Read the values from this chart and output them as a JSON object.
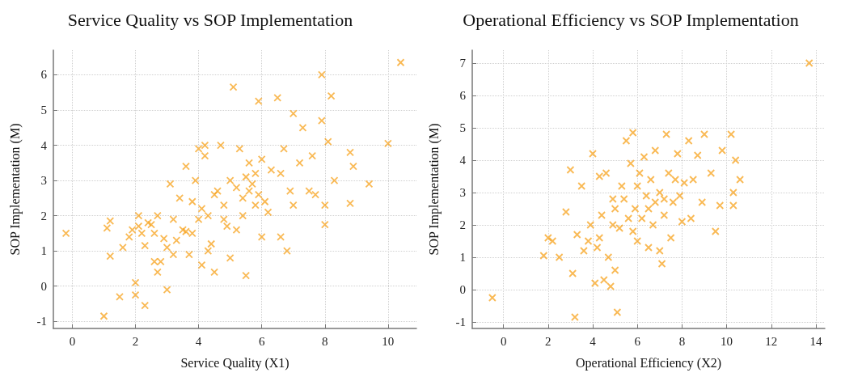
{
  "chart_data": [
    {
      "type": "scatter",
      "title": "Service Quality vs SOP Implementation",
      "xlabel": "Service Quality (X1)",
      "ylabel": "SOP Implementation (M)",
      "marker": "cross",
      "grid": true,
      "xlim": [
        -0.6,
        10.9
      ],
      "ylim": [
        -1.2,
        6.7
      ],
      "xticks": [
        0,
        2,
        4,
        6,
        8,
        10
      ],
      "yticks": [
        -1,
        0,
        1,
        2,
        3,
        4,
        5,
        6
      ],
      "series": [
        {
          "color": "#f7a21b",
          "x": [
            -0.2,
            1.0,
            1.1,
            1.2,
            1.2,
            1.5,
            1.6,
            1.8,
            1.9,
            2.0,
            2.0,
            2.1,
            2.1,
            2.2,
            2.3,
            2.3,
            2.5,
            2.6,
            2.6,
            2.7,
            2.7,
            2.8,
            2.9,
            3.0,
            3.0,
            3.1,
            3.2,
            3.3,
            3.4,
            3.5,
            3.6,
            3.6,
            3.7,
            3.8,
            3.9,
            4.0,
            4.0,
            4.1,
            4.1,
            4.2,
            4.2,
            4.3,
            4.4,
            4.5,
            4.6,
            4.7,
            4.8,
            4.9,
            5.0,
            5.0,
            5.1,
            5.2,
            5.3,
            5.4,
            5.5,
            5.5,
            5.6,
            5.7,
            5.8,
            5.9,
            6.0,
            6.0,
            6.2,
            6.3,
            6.5,
            6.6,
            6.6,
            6.7,
            6.8,
            6.9,
            7.0,
            7.0,
            7.2,
            7.3,
            7.5,
            7.6,
            7.7,
            7.9,
            7.9,
            8.0,
            8.0,
            8.1,
            8.2,
            8.3,
            8.8,
            8.8,
            8.9,
            9.4,
            10.0,
            10.4,
            5.6,
            5.8,
            5.9,
            6.1,
            5.4,
            4.5,
            3.8,
            3.2,
            2.4,
            4.8,
            5.2,
            4.3
          ],
          "values": [
            1.5,
            -0.85,
            1.65,
            1.85,
            0.85,
            -0.3,
            1.1,
            1.4,
            1.6,
            0.1,
            -0.25,
            2.0,
            1.7,
            1.5,
            -0.55,
            1.15,
            1.75,
            1.5,
            0.7,
            0.4,
            2.0,
            0.7,
            1.35,
            1.1,
            -0.1,
            2.9,
            0.9,
            1.3,
            2.5,
            1.6,
            1.55,
            3.4,
            0.9,
            1.5,
            3.0,
            3.9,
            1.9,
            2.2,
            0.6,
            4.0,
            3.7,
            2.0,
            1.2,
            0.4,
            2.7,
            4.0,
            2.3,
            1.7,
            3.0,
            0.8,
            5.65,
            2.8,
            3.9,
            2.5,
            3.1,
            0.3,
            2.7,
            2.9,
            2.3,
            5.25,
            3.6,
            1.4,
            2.1,
            3.3,
            5.35,
            3.2,
            1.4,
            3.9,
            1.0,
            2.7,
            4.9,
            2.3,
            3.5,
            4.5,
            2.7,
            3.7,
            2.6,
            6.0,
            4.7,
            2.3,
            1.75,
            4.1,
            5.4,
            3.0,
            3.8,
            2.35,
            3.4,
            2.9,
            4.05,
            6.35,
            3.5,
            3.2,
            2.6,
            2.4,
            2.0,
            2.6,
            2.4,
            1.9,
            1.8,
            1.9,
            1.6,
            1.0
          ]
        }
      ]
    },
    {
      "type": "scatter",
      "title": "Operational Efficiency vs SOP Implementation",
      "xlabel": "Operational Efficiency (X2)",
      "ylabel": "SOP Implementation (M)",
      "marker": "cross",
      "grid": true,
      "xlim": [
        -1.4,
        14.4
      ],
      "ylim": [
        -1.2,
        7.4
      ],
      "xticks": [
        0,
        2,
        4,
        6,
        8,
        10,
        12,
        14
      ],
      "yticks": [
        -1,
        0,
        1,
        2,
        3,
        4,
        5,
        6,
        7
      ],
      "series": [
        {
          "color": "#f7a21b",
          "x": [
            -0.5,
            1.8,
            2.0,
            2.2,
            2.5,
            2.8,
            3.0,
            3.1,
            3.2,
            3.3,
            3.5,
            3.6,
            3.8,
            3.9,
            4.0,
            4.1,
            4.2,
            4.3,
            4.4,
            4.5,
            4.6,
            4.7,
            4.8,
            4.9,
            5.0,
            5.1,
            5.2,
            5.3,
            5.5,
            5.6,
            5.7,
            5.8,
            5.9,
            6.0,
            6.1,
            6.2,
            6.3,
            6.4,
            6.5,
            6.6,
            6.7,
            6.8,
            7.0,
            7.0,
            7.1,
            7.2,
            7.3,
            7.4,
            7.5,
            7.6,
            7.7,
            7.8,
            8.0,
            8.1,
            8.3,
            8.4,
            8.5,
            8.7,
            8.9,
            9.0,
            9.3,
            9.5,
            9.7,
            9.8,
            10.2,
            10.3,
            10.3,
            10.4,
            10.6,
            13.7,
            6.0,
            6.5,
            7.2,
            5.4,
            4.9,
            5.8,
            6.8,
            7.9,
            4.3,
            5.0
          ],
          "values": [
            -0.25,
            1.05,
            1.6,
            1.5,
            1.0,
            2.4,
            3.7,
            0.5,
            -0.85,
            1.7,
            3.2,
            1.2,
            1.5,
            2.0,
            4.2,
            0.2,
            1.3,
            3.5,
            2.3,
            0.3,
            3.6,
            1.0,
            0.1,
            2.8,
            2.5,
            -0.7,
            1.9,
            3.2,
            4.6,
            2.2,
            3.9,
            4.85,
            2.5,
            1.5,
            3.6,
            2.2,
            4.1,
            2.9,
            1.3,
            3.4,
            2.0,
            4.3,
            1.2,
            3.0,
            0.8,
            2.3,
            4.8,
            3.6,
            1.6,
            2.7,
            3.4,
            4.2,
            2.1,
            3.3,
            4.6,
            2.2,
            3.4,
            4.15,
            2.7,
            4.8,
            3.6,
            1.8,
            2.6,
            4.3,
            4.8,
            3.0,
            2.6,
            4.0,
            3.4,
            7.0,
            3.2,
            2.5,
            2.8,
            2.8,
            2.0,
            1.8,
            2.7,
            2.9,
            1.6,
            0.6
          ]
        }
      ]
    }
  ]
}
